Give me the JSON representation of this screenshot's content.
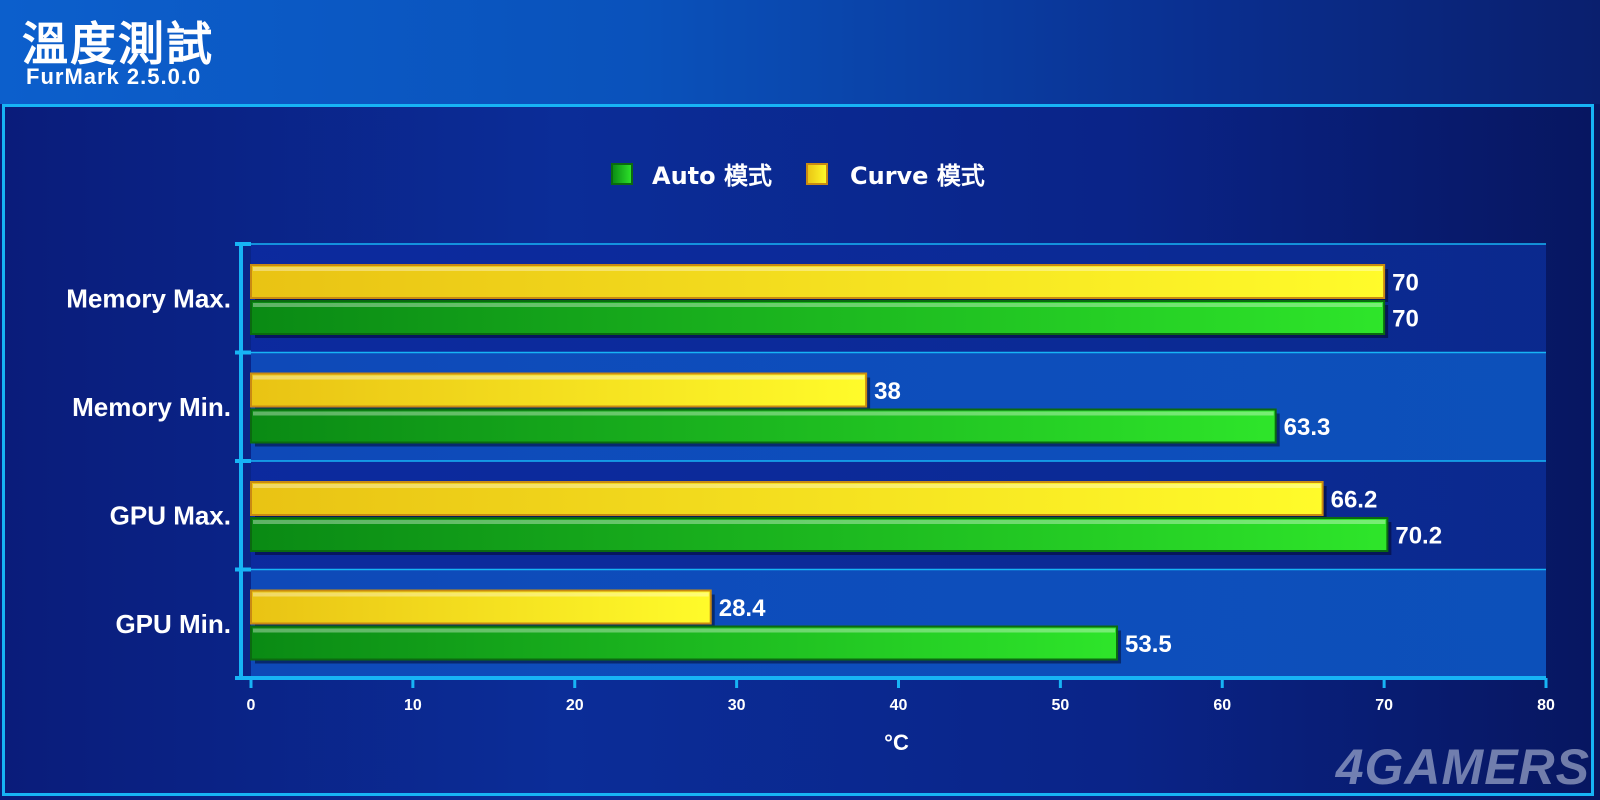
{
  "header": {
    "title": "溫度測試",
    "subtitle": "FurMark 2.5.0.0"
  },
  "watermark": "4GAMERS",
  "colors": {
    "auto": "#1fc21f",
    "curve": "#f4df1a",
    "grid": "#17b4f5"
  },
  "chart_data": {
    "type": "bar",
    "orientation": "horizontal",
    "categories": [
      "Memory Max.",
      "Memory Min.",
      "GPU Max.",
      "GPU Min."
    ],
    "series": [
      {
        "name": "Auto 模式",
        "values": [
          70,
          63.3,
          70.2,
          53.5
        ]
      },
      {
        "name": "Curve 模式",
        "values": [
          70,
          38,
          66.2,
          28.4
        ]
      }
    ],
    "xlabel": "°C",
    "xlim": [
      0,
      80
    ],
    "xticks": [
      0,
      10,
      20,
      30,
      40,
      50,
      60,
      70,
      80
    ],
    "legend_position": "top-center",
    "grid": true
  }
}
